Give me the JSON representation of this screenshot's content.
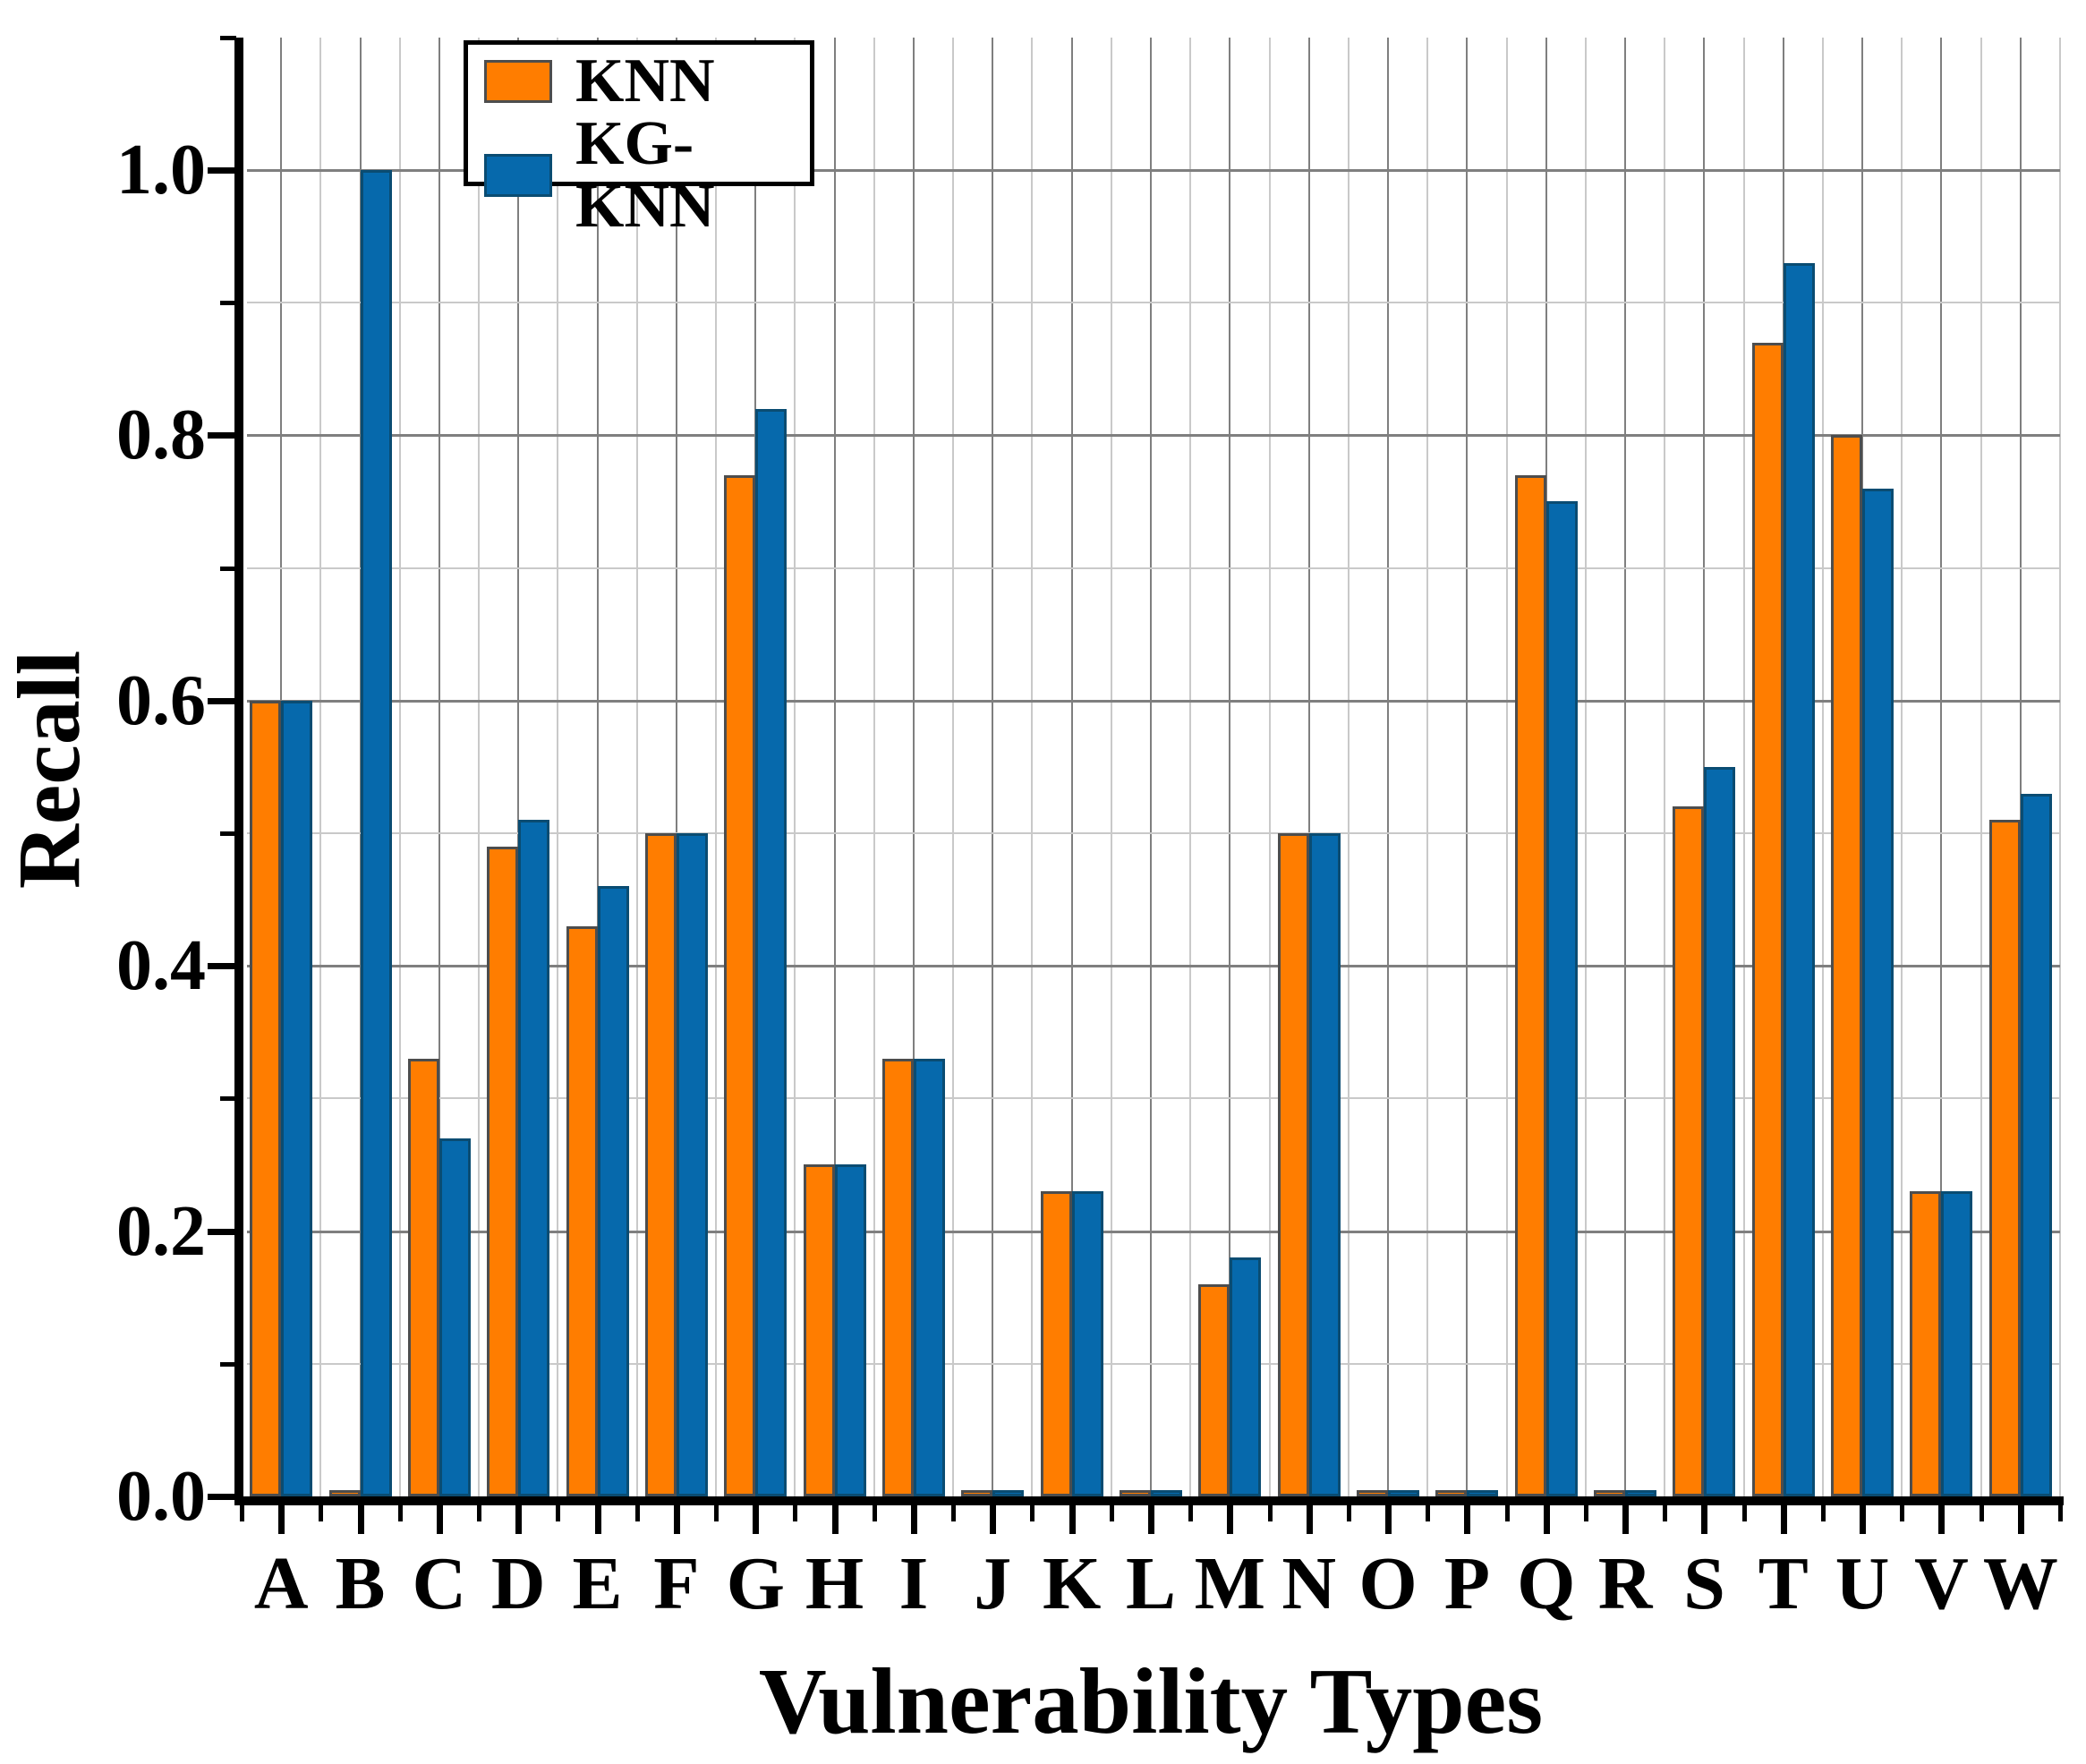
{
  "chart_data": {
    "type": "bar",
    "title": "",
    "xlabel": "Vulnerability Types",
    "ylabel": "Recall",
    "categories": [
      "A",
      "B",
      "C",
      "D",
      "E",
      "F",
      "G",
      "H",
      "I",
      "J",
      "K",
      "L",
      "M",
      "N",
      "O",
      "P",
      "Q",
      "R",
      "S",
      "T",
      "U",
      "V",
      "W"
    ],
    "series": [
      {
        "name": "KNN",
        "color": "#FF7D00",
        "border_color": "#4D4D4D",
        "values": [
          0.6,
          0.005,
          0.33,
          0.49,
          0.43,
          0.5,
          0.77,
          0.25,
          0.33,
          0.005,
          0.23,
          0.005,
          0.16,
          0.5,
          0.005,
          0.005,
          0.77,
          0.005,
          0.52,
          0.87,
          0.8,
          0.23,
          0.51
        ]
      },
      {
        "name": "KG-KNN",
        "color": "#0669AC",
        "border_color": "#0A4C72",
        "values": [
          0.6,
          1.0,
          0.27,
          0.51,
          0.46,
          0.5,
          0.82,
          0.25,
          0.33,
          0.005,
          0.23,
          0.005,
          0.18,
          0.5,
          0.005,
          0.005,
          0.75,
          0.005,
          0.55,
          0.93,
          0.76,
          0.23,
          0.53
        ]
      }
    ],
    "ylim": [
      0.0,
      1.1
    ],
    "yticks_major": [
      0.0,
      0.2,
      0.4,
      0.6,
      0.8,
      1.0
    ],
    "ytick_labels": [
      "0.0",
      "0.2",
      "0.4",
      "0.6",
      "0.8",
      "1.0"
    ],
    "grid": true,
    "grid_minor_step": 0.1,
    "legend_position": "top-left"
  },
  "legend": {
    "items": [
      {
        "label": "KNN",
        "color": "#FF7D00",
        "border_color": "#4D4D4D"
      },
      {
        "label": "KG-KNN",
        "color": "#0669AC",
        "border_color": "#0A4C72"
      }
    ]
  },
  "colors": {
    "background": "#FFFFFF",
    "axis": "#000000",
    "grid_major": "#7F7F7F",
    "grid_minor": "#C9C9C9",
    "text": "#000000"
  }
}
